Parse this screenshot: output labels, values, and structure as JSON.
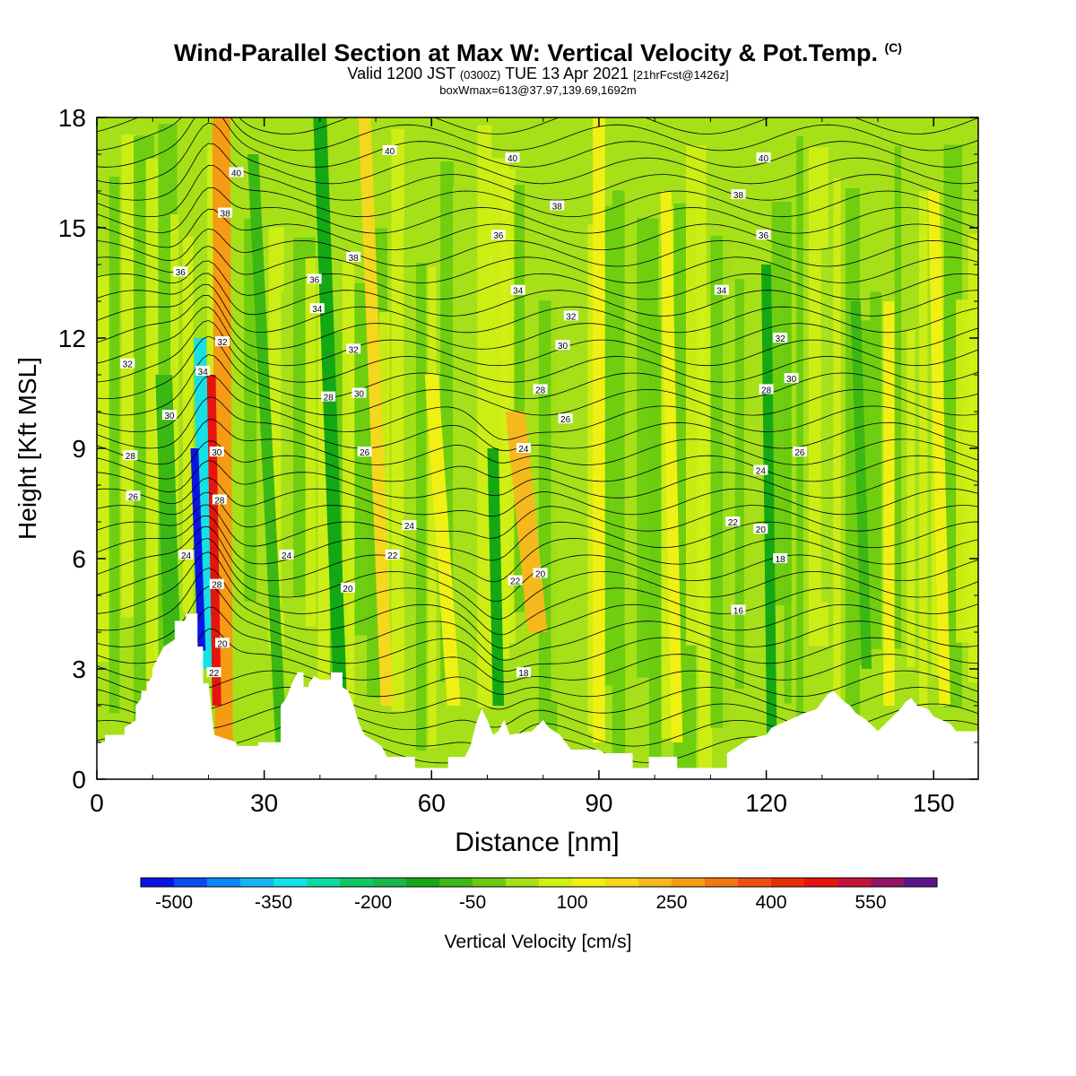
{
  "header": {
    "title": "Wind-Parallel Section at Max W: Vertical Velocity & Pot.Temp.",
    "copyright": "(C)",
    "valid_prefix": "Valid 1200 JST",
    "valid_utc": "(0300Z)",
    "valid_date": "TUE 13 Apr 2021",
    "forecast": "[21hrFcst@1426z]",
    "boxmax": "boxWmax=613@37.97,139.69,1692m"
  },
  "chart_data": {
    "type": "heatmap",
    "xlabel": "Distance [nm]",
    "ylabel": "Height [Kft MSL]",
    "xlim": [
      0,
      158
    ],
    "ylim": [
      0,
      18
    ],
    "x_ticks": [
      0,
      30,
      60,
      90,
      120,
      150
    ],
    "y_ticks": [
      0,
      3,
      6,
      9,
      12,
      15,
      18
    ],
    "colorbar": {
      "label": "Vertical Velocity [cm/s]",
      "ticks": [
        -500,
        -350,
        -200,
        -50,
        100,
        250,
        400,
        550
      ],
      "levels": [
        -550,
        -500,
        -450,
        -400,
        -350,
        -300,
        -250,
        -200,
        -150,
        -100,
        -50,
        0,
        50,
        100,
        150,
        200,
        250,
        300,
        350,
        400,
        450,
        500,
        550,
        600
      ],
      "colors": [
        "#0a14e6",
        "#0a4cf0",
        "#0a87f5",
        "#14b4f5",
        "#14e1e6",
        "#10d8a6",
        "#0fc867",
        "#1ab84a",
        "#14a814",
        "#3cb814",
        "#69cc0f",
        "#a6e019",
        "#d2f014",
        "#f0f014",
        "#f5d71e",
        "#f5b91e",
        "#f59b14",
        "#f0780f",
        "#f0500f",
        "#e62d0a",
        "#e6140f",
        "#c3143c",
        "#961464",
        "#5a148c"
      ]
    },
    "contour_labels": [
      {
        "value": "40",
        "x": 25,
        "y": 16.5
      },
      {
        "value": "40",
        "x": 52.5,
        "y": 17.1
      },
      {
        "value": "40",
        "x": 74.5,
        "y": 16.9
      },
      {
        "value": "40",
        "x": 119.5,
        "y": 16.9
      },
      {
        "value": "38",
        "x": 23,
        "y": 15.4
      },
      {
        "value": "38",
        "x": 46,
        "y": 14.2
      },
      {
        "value": "38",
        "x": 82.5,
        "y": 15.6
      },
      {
        "value": "38",
        "x": 115,
        "y": 15.9
      },
      {
        "value": "36",
        "x": 15,
        "y": 13.8
      },
      {
        "value": "36",
        "x": 39,
        "y": 13.6
      },
      {
        "value": "36",
        "x": 72,
        "y": 14.8
      },
      {
        "value": "36",
        "x": 119.5,
        "y": 14.8
      },
      {
        "value": "34",
        "x": 19,
        "y": 11.1
      },
      {
        "value": "34",
        "x": 39.5,
        "y": 12.8
      },
      {
        "value": "34",
        "x": 75.5,
        "y": 13.3
      },
      {
        "value": "34",
        "x": 112,
        "y": 13.3
      },
      {
        "value": "32",
        "x": 5.5,
        "y": 11.3
      },
      {
        "value": "32",
        "x": 22.5,
        "y": 11.9
      },
      {
        "value": "32",
        "x": 46,
        "y": 11.7
      },
      {
        "value": "32",
        "x": 85,
        "y": 12.6
      },
      {
        "value": "32",
        "x": 122.5,
        "y": 12
      },
      {
        "value": "30",
        "x": 13,
        "y": 9.9
      },
      {
        "value": "30",
        "x": 21.5,
        "y": 8.9
      },
      {
        "value": "30",
        "x": 47,
        "y": 10.5
      },
      {
        "value": "30",
        "x": 83.5,
        "y": 11.8
      },
      {
        "value": "30",
        "x": 124.5,
        "y": 10.9
      },
      {
        "value": "28",
        "x": 6,
        "y": 8.8
      },
      {
        "value": "28",
        "x": 41.5,
        "y": 10.4
      },
      {
        "value": "28",
        "x": 79.5,
        "y": 10.6
      },
      {
        "value": "28",
        "x": 120,
        "y": 10.6
      },
      {
        "value": "26",
        "x": 6.5,
        "y": 7.7
      },
      {
        "value": "26",
        "x": 48,
        "y": 8.9
      },
      {
        "value": "26",
        "x": 84,
        "y": 9.8
      },
      {
        "value": "26",
        "x": 126,
        "y": 8.9
      },
      {
        "value": "24",
        "x": 16,
        "y": 6.1
      },
      {
        "value": "24",
        "x": 34,
        "y": 6.1
      },
      {
        "value": "24",
        "x": 56,
        "y": 6.9
      },
      {
        "value": "24",
        "x": 76.5,
        "y": 9
      },
      {
        "value": "24",
        "x": 119,
        "y": 8.4
      },
      {
        "value": "22",
        "x": 53,
        "y": 6.1
      },
      {
        "value": "22",
        "x": 75,
        "y": 5.4
      },
      {
        "value": "22",
        "x": 114,
        "y": 7
      },
      {
        "value": "22",
        "x": 21,
        "y": 2.9
      },
      {
        "value": "20",
        "x": 45,
        "y": 5.2
      },
      {
        "value": "20",
        "x": 79.5,
        "y": 5.6
      },
      {
        "value": "20",
        "x": 119,
        "y": 6.8
      },
      {
        "value": "20",
        "x": 22.5,
        "y": 3.7
      },
      {
        "value": "18",
        "x": 76.5,
        "y": 2.9
      },
      {
        "value": "18",
        "x": 122.5,
        "y": 6
      },
      {
        "value": "16",
        "x": 115,
        "y": 4.6
      },
      {
        "value": "28",
        "x": 22,
        "y": 7.6
      },
      {
        "value": "28",
        "x": 21.5,
        "y": 5.3
      }
    ]
  }
}
